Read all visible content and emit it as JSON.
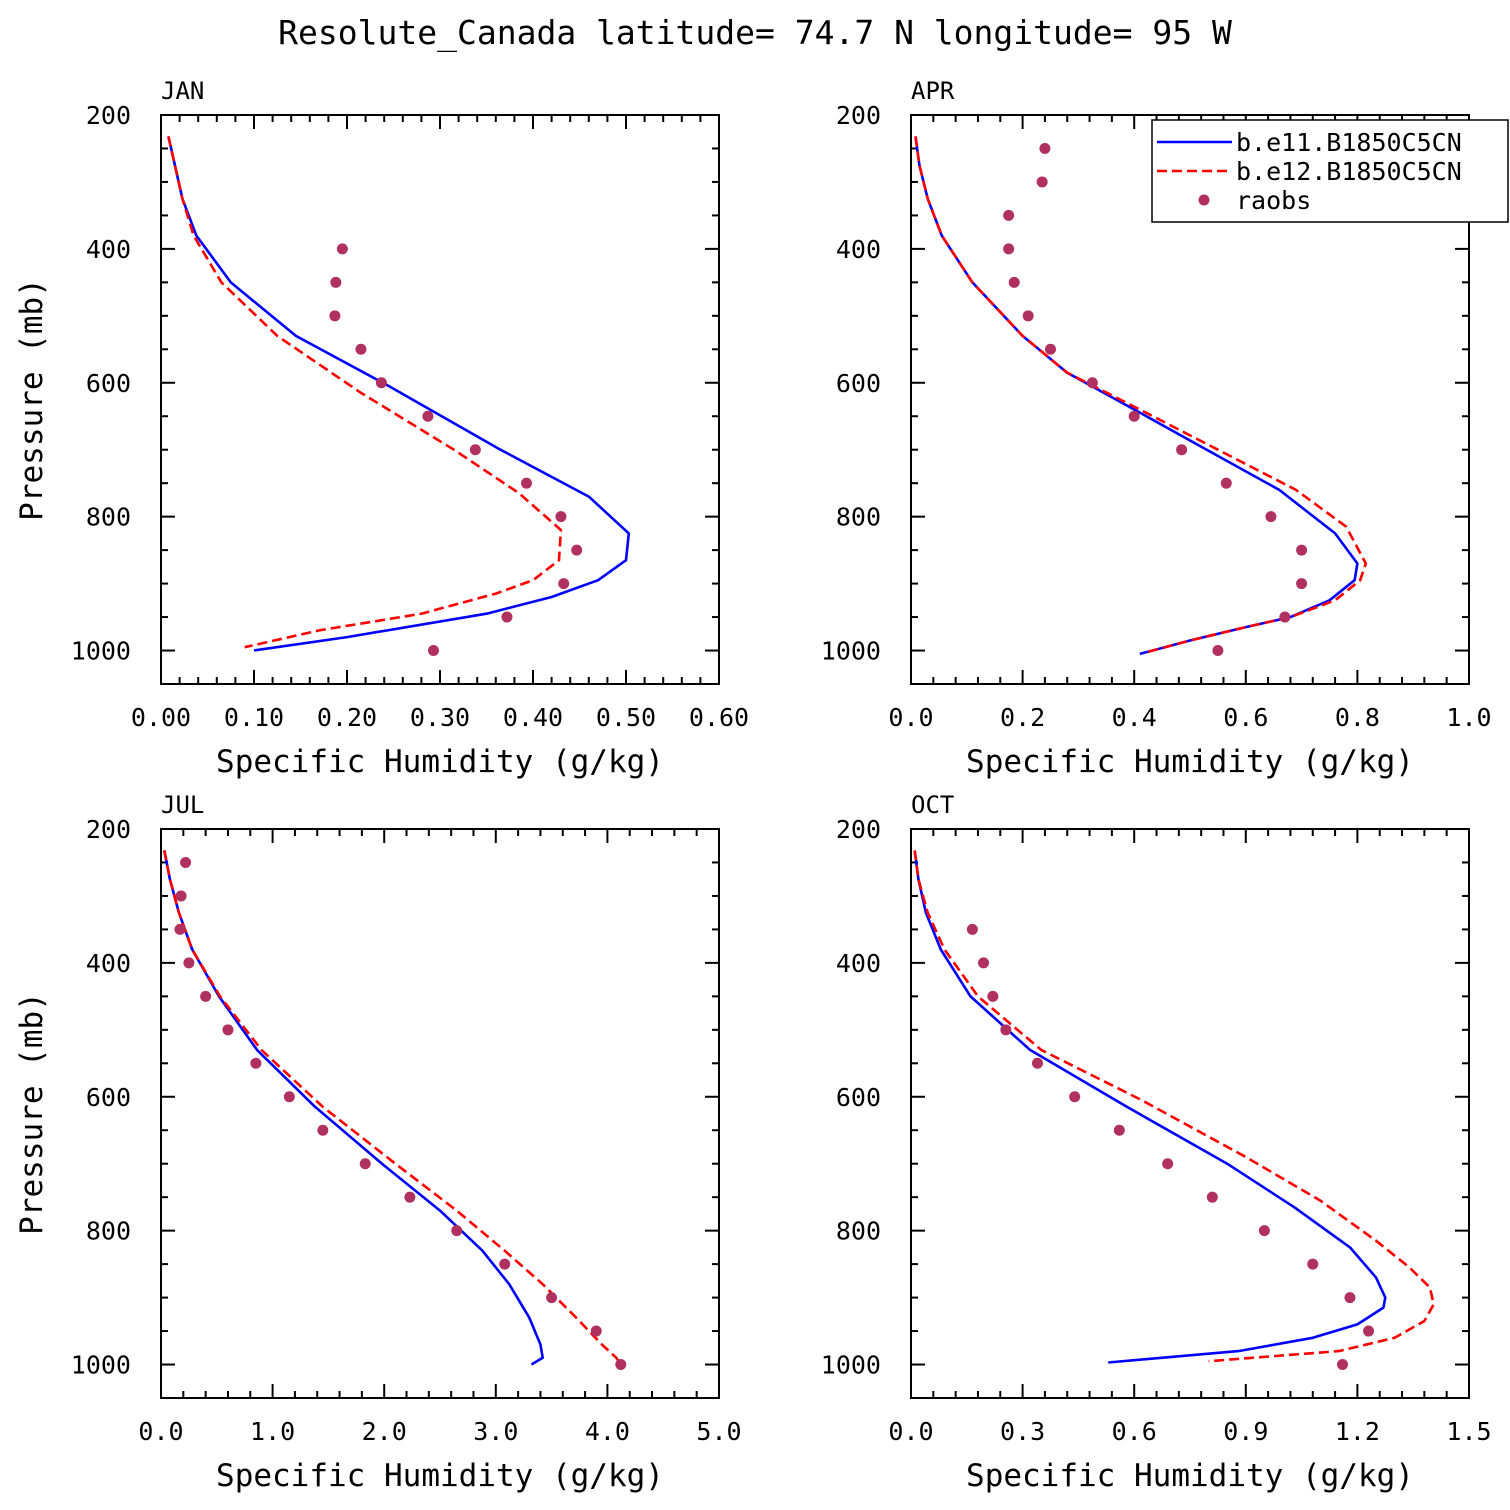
{
  "chart_data": {
    "type": "line",
    "title": "Resolute_Canada  latitude= 74.7 N longitude= 95 W",
    "legend": {
      "placement": "top-right of APR panel",
      "entries": [
        {
          "label": "b.e11.B1850C5CN",
          "style": "solid",
          "color": "#0000ff"
        },
        {
          "label": "b.e12.B1850C5CN",
          "style": "dashed",
          "color": "#ff0000"
        },
        {
          "label": "raobs",
          "style": "marker",
          "color": "#b03060"
        }
      ]
    },
    "panels": [
      {
        "label": "JAN",
        "xlabel": "Specific Humidity (g/kg)",
        "ylabel": "Pressure (mb)",
        "xlim": [
          0,
          0.6
        ],
        "ylim": [
          200,
          1050
        ],
        "xticks": [
          "0.00",
          "0.10",
          "0.20",
          "0.30",
          "0.40",
          "0.50",
          "0.60"
        ],
        "yticks": [
          "200",
          "400",
          "600",
          "800",
          "1000"
        ],
        "series": [
          {
            "name": "b.e11.B1850C5CN",
            "x": [
              0.008,
              0.015,
              0.023,
              0.038,
              0.075,
              0.145,
              0.245,
              0.365,
              0.46,
              0.503,
              0.5,
              0.47,
              0.42,
              0.35,
              0.2,
              0.1
            ],
            "p": [
              232,
              275,
              325,
              380,
              450,
              530,
              605,
              700,
              770,
              825,
              865,
              895,
              920,
              945,
              980,
              1000
            ]
          },
          {
            "name": "b.e12.B1850C5CN",
            "x": [
              0.008,
              0.015,
              0.023,
              0.035,
              0.065,
              0.125,
              0.215,
              0.315,
              0.385,
              0.43,
              0.428,
              0.4,
              0.36,
              0.28,
              0.17,
              0.09
            ],
            "p": [
              232,
              275,
              325,
              380,
              450,
              530,
              615,
              700,
              765,
              820,
              865,
              895,
              915,
              945,
              970,
              995
            ]
          },
          {
            "name": "raobs",
            "x": [
              0.195,
              0.188,
              0.187,
              0.215,
              0.237,
              0.287,
              0.338,
              0.393,
              0.43,
              0.447,
              0.433,
              0.372,
              0.293
            ],
            "p": [
              400,
              450,
              500,
              550,
              600,
              650,
              700,
              750,
              800,
              850,
              900,
              950,
              1000
            ]
          }
        ]
      },
      {
        "label": "APR",
        "xlabel": "Specific Humidity (g/kg)",
        "ylabel": "",
        "xlim": [
          0,
          1.0
        ],
        "ylim": [
          200,
          1050
        ],
        "xticks": [
          "0.0",
          "0.2",
          "0.4",
          "0.6",
          "0.8",
          "1.0"
        ],
        "yticks": [
          "200",
          "400",
          "600",
          "800",
          "1000"
        ],
        "series": [
          {
            "name": "b.e11.B1850C5CN",
            "x": [
              0.008,
              0.015,
              0.03,
              0.055,
              0.11,
              0.2,
              0.28,
              0.4,
              0.53,
              0.66,
              0.76,
              0.8,
              0.795,
              0.75,
              0.68,
              0.6,
              0.5,
              0.41
            ],
            "p": [
              232,
              275,
              325,
              380,
              450,
              530,
              585,
              640,
              700,
              760,
              825,
              870,
              895,
              925,
              950,
              965,
              985,
              1005
            ]
          },
          {
            "name": "b.e12.B1850C5CN",
            "x": [
              0.008,
              0.015,
              0.03,
              0.055,
              0.11,
              0.2,
              0.28,
              0.41,
              0.55,
              0.69,
              0.78,
              0.815,
              0.805,
              0.76,
              0.68,
              0.6,
              0.5,
              0.42
            ],
            "p": [
              232,
              275,
              325,
              380,
              450,
              530,
              585,
              640,
              700,
              760,
              815,
              870,
              895,
              925,
              950,
              965,
              985,
              1003
            ]
          },
          {
            "name": "raobs",
            "x": [
              0.24,
              0.235,
              0.175,
              0.175,
              0.185,
              0.21,
              0.25,
              0.325,
              0.4,
              0.485,
              0.565,
              0.645,
              0.7,
              0.7,
              0.67,
              0.55
            ],
            "p": [
              250,
              300,
              350,
              400,
              450,
              500,
              550,
              600,
              650,
              700,
              750,
              800,
              850,
              900,
              950,
              1000
            ]
          }
        ]
      },
      {
        "label": "JUL",
        "xlabel": "Specific Humidity (g/kg)",
        "ylabel": "Pressure (mb)",
        "xlim": [
          0,
          5.0
        ],
        "ylim": [
          200,
          1050
        ],
        "xticks": [
          "0.0",
          "1.0",
          "2.0",
          "3.0",
          "4.0",
          "5.0"
        ],
        "yticks": [
          "200",
          "400",
          "600",
          "800",
          "1000"
        ],
        "series": [
          {
            "name": "b.e11.B1850C5CN",
            "x": [
              0.03,
              0.08,
              0.16,
              0.28,
              0.52,
              0.86,
              1.38,
              1.98,
              2.5,
              2.88,
              3.12,
              3.3,
              3.4,
              3.42,
              3.32
            ],
            "p": [
              232,
              275,
              325,
              380,
              450,
              530,
              615,
              700,
              770,
              830,
              880,
              930,
              970,
              990,
              1000
            ]
          },
          {
            "name": "b.e12.B1850C5CN",
            "x": [
              0.03,
              0.08,
              0.16,
              0.28,
              0.53,
              0.9,
              1.45,
              2.1,
              2.65,
              3.08,
              3.42,
              3.72,
              3.95,
              4.08,
              4.12
            ],
            "p": [
              232,
              275,
              325,
              380,
              450,
              530,
              615,
              700,
              770,
              830,
              880,
              930,
              970,
              990,
              1000
            ]
          },
          {
            "name": "raobs",
            "x": [
              0.22,
              0.18,
              0.17,
              0.25,
              0.4,
              0.6,
              0.85,
              1.15,
              1.45,
              1.83,
              2.23,
              2.65,
              3.08,
              3.5,
              3.9,
              4.12
            ],
            "p": [
              250,
              300,
              350,
              400,
              450,
              500,
              550,
              600,
              650,
              700,
              750,
              800,
              850,
              900,
              950,
              1000
            ]
          }
        ]
      },
      {
        "label": "OCT",
        "xlabel": "Specific Humidity (g/kg)",
        "ylabel": "",
        "xlim": [
          0,
          1.5
        ],
        "ylim": [
          200,
          1050
        ],
        "xticks": [
          "0.0",
          "0.3",
          "0.6",
          "0.9",
          "1.2",
          "1.5"
        ],
        "yticks": [
          "200",
          "400",
          "600",
          "800",
          "1000"
        ],
        "series": [
          {
            "name": "b.e11.B1850C5CN",
            "x": [
              0.01,
              0.02,
              0.04,
              0.08,
              0.16,
              0.32,
              0.58,
              0.85,
              1.03,
              1.18,
              1.25,
              1.275,
              1.27,
              1.2,
              1.08,
              0.88,
              0.53
            ],
            "p": [
              232,
              275,
              325,
              380,
              450,
              530,
              615,
              700,
              765,
              825,
              870,
              900,
              915,
              940,
              960,
              980,
              997
            ]
          },
          {
            "name": "b.e12.B1850C5CN",
            "x": [
              0.01,
              0.02,
              0.045,
              0.09,
              0.18,
              0.35,
              0.62,
              0.9,
              1.1,
              1.25,
              1.34,
              1.395,
              1.405,
              1.38,
              1.3,
              1.15,
              0.8
            ],
            "p": [
              232,
              275,
              325,
              380,
              450,
              530,
              605,
              690,
              755,
              815,
              855,
              885,
              910,
              935,
              960,
              980,
              995
            ]
          },
          {
            "name": "raobs",
            "x": [
              0.165,
              0.195,
              0.22,
              0.255,
              0.34,
              0.44,
              0.56,
              0.69,
              0.81,
              0.95,
              1.08,
              1.18,
              1.23,
              1.16
            ],
            "p": [
              350,
              400,
              450,
              500,
              550,
              600,
              650,
              700,
              750,
              800,
              850,
              900,
              950,
              1000
            ]
          }
        ]
      }
    ]
  }
}
